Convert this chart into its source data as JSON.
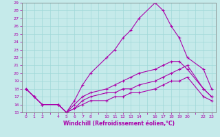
{
  "xlabel": "Windchill (Refroidissement éolien,°C)",
  "bg_color": "#c5eaea",
  "line_color": "#aa00aa",
  "grid_color": "#a0d8d8",
  "xlim": [
    -0.5,
    23.5
  ],
  "ylim": [
    15,
    29
  ],
  "yticks": [
    15,
    16,
    17,
    18,
    19,
    20,
    21,
    22,
    23,
    24,
    25,
    26,
    27,
    28,
    29
  ],
  "xtick_positions": [
    0,
    1,
    2,
    4,
    5,
    6,
    7,
    8,
    10,
    11,
    12,
    13,
    14,
    16,
    17,
    18,
    19,
    20,
    22,
    23
  ],
  "xtick_labels": [
    "0",
    "1",
    "2",
    "4",
    "5",
    "6",
    "7",
    "8",
    "10",
    "11",
    "12",
    "13",
    "14",
    "16",
    "17",
    "18",
    "19",
    "20",
    "22",
    "23"
  ],
  "lines": [
    {
      "x": [
        0,
        1,
        2,
        4,
        5,
        6,
        7,
        8,
        10,
        11,
        12,
        13,
        14,
        16,
        17,
        18,
        19,
        20,
        22,
        23
      ],
      "y": [
        18,
        17,
        16,
        16,
        15,
        16.5,
        18.5,
        20,
        22,
        23,
        24.5,
        25.5,
        27,
        29,
        28,
        26,
        24.5,
        22,
        20.5,
        18
      ]
    },
    {
      "x": [
        0,
        1,
        2,
        4,
        5,
        6,
        7,
        8,
        10,
        11,
        12,
        13,
        14,
        16,
        17,
        18,
        19,
        20,
        22,
        23
      ],
      "y": [
        18,
        17,
        16,
        16,
        15,
        16,
        17,
        17.5,
        18,
        18.5,
        19,
        19.5,
        20,
        20.5,
        21,
        21.5,
        21.5,
        20.5,
        18,
        17
      ]
    },
    {
      "x": [
        0,
        1,
        2,
        4,
        5,
        6,
        7,
        8,
        10,
        11,
        12,
        13,
        14,
        16,
        17,
        18,
        19,
        20,
        22,
        23
      ],
      "y": [
        18,
        17,
        16,
        16,
        15,
        15.5,
        16,
        16.5,
        16.5,
        17,
        17,
        17.5,
        17.5,
        18,
        18.5,
        19,
        19,
        19.5,
        17,
        16.5
      ]
    },
    {
      "x": [
        0,
        1,
        2,
        4,
        5,
        6,
        7,
        8,
        10,
        11,
        12,
        13,
        14,
        16,
        17,
        18,
        19,
        20,
        22,
        23
      ],
      "y": [
        18,
        17,
        16,
        16,
        15,
        15.5,
        16.5,
        17,
        17.5,
        17.5,
        18,
        18,
        18.5,
        19,
        19.5,
        20,
        20.5,
        21,
        18,
        17
      ]
    }
  ]
}
